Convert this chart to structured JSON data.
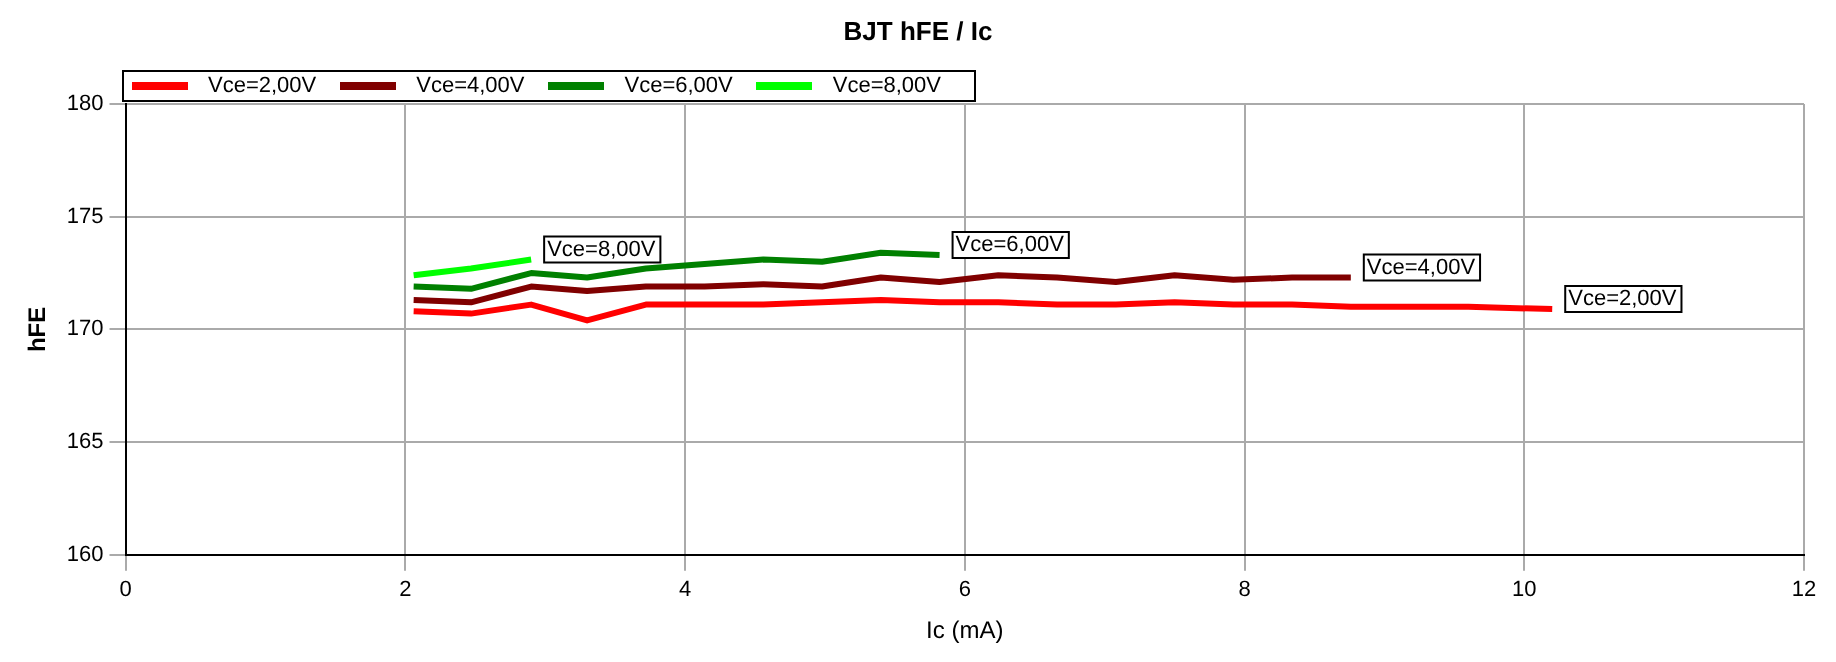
{
  "chart_data": {
    "type": "line",
    "title": "BJT hFE / Ic",
    "xlabel": "Ic (mA)",
    "ylabel": "hFE",
    "xlim": [
      0,
      12
    ],
    "xticks": [
      0,
      2,
      4,
      6,
      8,
      10,
      12
    ],
    "ylim": [
      160,
      180
    ],
    "yticks": [
      160,
      165,
      170,
      175,
      180
    ],
    "grid": true,
    "legend": "top left",
    "marker": "none",
    "line_style": "solid",
    "series": [
      {
        "name": "Vce=2,00V",
        "color": "#ff0000",
        "x": [
          2.06,
          2.47,
          2.9,
          3.3,
          3.72,
          4.14,
          4.56,
          4.98,
          5.4,
          5.82,
          6.24,
          6.66,
          7.08,
          7.5,
          7.92,
          8.34,
          8.76,
          9.18,
          9.6,
          10.2
        ],
        "values": [
          170.8,
          170.7,
          171.1,
          170.4,
          171.1,
          171.1,
          171.1,
          171.2,
          171.3,
          171.2,
          171.2,
          171.1,
          171.1,
          171.2,
          171.1,
          171.1,
          171.0,
          171.0,
          171.0,
          170.9
        ]
      },
      {
        "name": "Vce=4,00V",
        "color": "#800000",
        "x": [
          2.06,
          2.47,
          2.9,
          3.3,
          3.72,
          4.14,
          4.56,
          4.98,
          5.4,
          5.82,
          6.24,
          6.66,
          7.08,
          7.5,
          7.92,
          8.34,
          8.76
        ],
        "values": [
          171.3,
          171.2,
          171.9,
          171.7,
          171.9,
          171.9,
          172.0,
          171.9,
          172.3,
          172.1,
          172.4,
          172.3,
          172.1,
          172.4,
          172.2,
          172.3,
          172.3
        ]
      },
      {
        "name": "Vce=6,00V",
        "color": "#008000",
        "x": [
          2.06,
          2.47,
          2.9,
          3.3,
          3.72,
          4.14,
          4.56,
          4.98,
          5.4,
          5.82
        ],
        "values": [
          171.9,
          171.8,
          172.5,
          172.3,
          172.7,
          172.9,
          173.1,
          173.0,
          173.4,
          173.3
        ]
      },
      {
        "name": "Vce=8,00V",
        "color": "#00ff00",
        "x": [
          2.06,
          2.47,
          2.9
        ],
        "values": [
          172.4,
          172.7,
          173.1
        ]
      }
    ],
    "annotations": [
      {
        "text": "Vce=8,00V",
        "x": 2.9,
        "y": 173.1
      },
      {
        "text": "Vce=6,00V",
        "x": 5.82,
        "y": 173.3
      },
      {
        "text": "Vce=4,00V",
        "x": 8.76,
        "y": 172.3
      },
      {
        "text": "Vce=2,00V",
        "x": 10.2,
        "y": 170.9
      }
    ]
  }
}
